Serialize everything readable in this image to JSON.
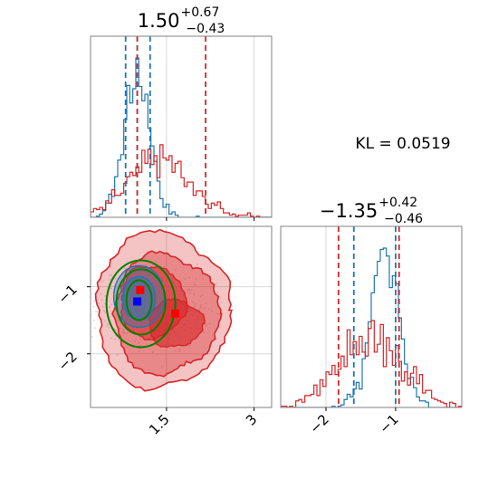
{
  "chart_data": [
    {
      "type": "histogram",
      "panel": "top-left",
      "parameter_index": 0,
      "title": {
        "median": "1.50",
        "plus": "+0.67",
        "minus": "−0.43"
      },
      "xlim": [
        0.2,
        3.3
      ],
      "x_ticks": [
        1.5,
        3.0
      ],
      "grid": true,
      "series": [
        {
          "color": "#1f77b4",
          "center": 1.0,
          "sd": 0.22,
          "quantile_lines": [
            0.8,
            1.0,
            1.22
          ]
        },
        {
          "color": "#d62728",
          "center": 1.35,
          "sd": 0.55,
          "quantile_lines": [
            1.0,
            2.17
          ]
        }
      ]
    },
    {
      "type": "histogram",
      "panel": "bottom-right",
      "parameter_index": 1,
      "title": {
        "median": "−1.35",
        "plus": "+0.42",
        "minus": "−0.46"
      },
      "xlim": [
        -2.65,
        -0.05
      ],
      "x_ticks": [
        -2,
        -1
      ],
      "x_tick_labels": [
        "−2",
        "−1"
      ],
      "grid": true,
      "series": [
        {
          "color": "#1f77b4",
          "center": -1.15,
          "sd": 0.22,
          "quantile_lines": [
            -1.6,
            -1.0
          ]
        },
        {
          "color": "#d62728",
          "center": -1.35,
          "sd": 0.45,
          "quantile_lines": [
            -1.82,
            -0.95
          ]
        }
      ]
    },
    {
      "type": "contour",
      "panel": "bottom-left",
      "xlim": [
        0.2,
        3.3
      ],
      "ylim": [
        -2.8,
        -0.1
      ],
      "x_ticks": [
        1.5,
        3.0
      ],
      "y_ticks": [
        -1,
        -2
      ],
      "y_tick_labels": [
        "−1",
        "−2"
      ],
      "grid": true,
      "markers": [
        {
          "color": "#ff0000",
          "x": 1.05,
          "y": -1.05
        },
        {
          "color": "#ff0000",
          "x": 1.65,
          "y": -1.4
        },
        {
          "color": "#0000ff",
          "x": 1.0,
          "y": -1.22
        }
      ],
      "contour_colors": [
        "#d62728",
        "#1f77b4",
        "#008000"
      ]
    }
  ],
  "annotation": {
    "kl_text": "KL = 0.0519"
  },
  "colors": {
    "blue": "#1f77b4",
    "red": "#d62728",
    "green": "#008000"
  }
}
